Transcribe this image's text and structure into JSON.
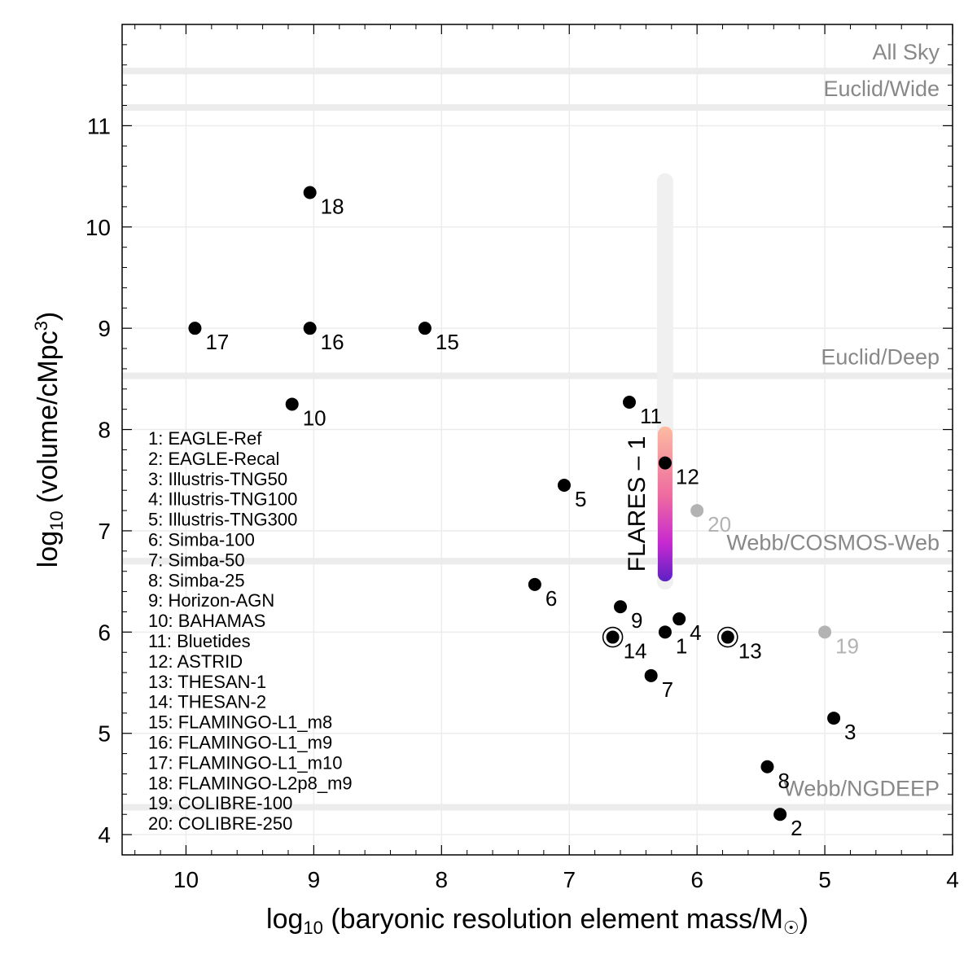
{
  "chart_data": {
    "type": "scatter",
    "xlabel": {
      "prefix": "log",
      "sub": "10",
      "text": "(baryonic resolution element mass/M",
      "sun": "☉",
      "close": ")"
    },
    "ylabel": {
      "prefix": "log",
      "sub": "10",
      "text": "(volume/cMpc",
      "sup": "3",
      "close": ")"
    },
    "xlim": [
      10.5,
      4.0
    ],
    "ylim": [
      3.8,
      12.0
    ],
    "x_reversed": true,
    "grid": true,
    "x_ticks": [
      "10",
      "9",
      "8",
      "7",
      "6",
      "5",
      "4"
    ],
    "y_ticks": [
      "4",
      "5",
      "6",
      "7",
      "8",
      "9",
      "10",
      "11"
    ],
    "survey_lines": [
      {
        "label": "All Sky",
        "y": 11.54
      },
      {
        "label": "Euclid/Wide",
        "y": 11.18
      },
      {
        "label": "Euclid/Deep",
        "y": 8.53
      },
      {
        "label": "Webb/COSMOS-Web",
        "y": 6.7
      },
      {
        "label": "Webb/NGDEEP",
        "y": 4.27
      }
    ],
    "points": [
      {
        "id": "1",
        "name": "EAGLE-Ref",
        "x": 6.25,
        "y": 6.0,
        "ring": false,
        "color": "#000000"
      },
      {
        "id": "2",
        "name": "EAGLE-Recal",
        "x": 5.35,
        "y": 4.2,
        "ring": false,
        "color": "#000000"
      },
      {
        "id": "3",
        "name": "Illustris-TNG50",
        "x": 4.93,
        "y": 5.15,
        "ring": false,
        "color": "#000000"
      },
      {
        "id": "4",
        "name": "Illustris-TNG100",
        "x": 6.14,
        "y": 6.13,
        "ring": false,
        "color": "#000000"
      },
      {
        "id": "5",
        "name": "Illustris-TNG300",
        "x": 7.04,
        "y": 7.45,
        "ring": false,
        "color": "#000000"
      },
      {
        "id": "6",
        "name": "Simba-100",
        "x": 7.27,
        "y": 6.47,
        "ring": false,
        "color": "#000000"
      },
      {
        "id": "7",
        "name": "Simba-50",
        "x": 6.36,
        "y": 5.57,
        "ring": false,
        "color": "#000000"
      },
      {
        "id": "8",
        "name": "Simba-25",
        "x": 5.45,
        "y": 4.67,
        "ring": false,
        "color": "#000000"
      },
      {
        "id": "9",
        "name": "Horizon-AGN",
        "x": 6.6,
        "y": 6.25,
        "ring": false,
        "color": "#000000"
      },
      {
        "id": "10",
        "name": "BAHAMAS",
        "x": 9.17,
        "y": 8.25,
        "ring": false,
        "color": "#000000"
      },
      {
        "id": "11",
        "name": "Bluetides",
        "x": 6.53,
        "y": 8.27,
        "ring": false,
        "color": "#000000"
      },
      {
        "id": "12",
        "name": "ASTRID",
        "x": 6.25,
        "y": 7.67,
        "ring": false,
        "color": "#000000"
      },
      {
        "id": "13",
        "name": "THESAN-1",
        "x": 5.76,
        "y": 5.95,
        "ring": true,
        "color": "#000000"
      },
      {
        "id": "14",
        "name": "THESAN-2",
        "x": 6.66,
        "y": 5.95,
        "ring": true,
        "color": "#000000"
      },
      {
        "id": "15",
        "name": "FLAMINGO-L1_m8",
        "x": 8.13,
        "y": 9.0,
        "ring": false,
        "color": "#000000"
      },
      {
        "id": "16",
        "name": "FLAMINGO-L1_m9",
        "x": 9.03,
        "y": 9.0,
        "ring": false,
        "color": "#000000"
      },
      {
        "id": "17",
        "name": "FLAMINGO-L1_m10",
        "x": 9.93,
        "y": 9.0,
        "ring": false,
        "color": "#000000"
      },
      {
        "id": "18",
        "name": "FLAMINGO-L2p8_m9",
        "x": 9.03,
        "y": 10.34,
        "ring": false,
        "color": "#000000"
      },
      {
        "id": "19",
        "name": "COLIBRE-100",
        "x": 5.0,
        "y": 6.0,
        "ring": false,
        "color": "#b3b3b3"
      },
      {
        "id": "20",
        "name": "COLIBRE-250",
        "x": 6.0,
        "y": 7.2,
        "ring": false,
        "color": "#b3b3b3"
      }
    ],
    "flares": {
      "label": "FLARES – 1",
      "x": 6.25,
      "bar_range": [
        6.5,
        8.03
      ],
      "background_range": [
        6.5,
        10.45
      ],
      "gradient_top": "#fcbba1",
      "gradient_bottom": "#5d21c4"
    },
    "colors": {
      "survey": "#888888",
      "survey_band": "#ececec",
      "grid": "#ececec",
      "highlight_bar": "#f0f0f0",
      "secondary": "#b3b3b3"
    }
  }
}
